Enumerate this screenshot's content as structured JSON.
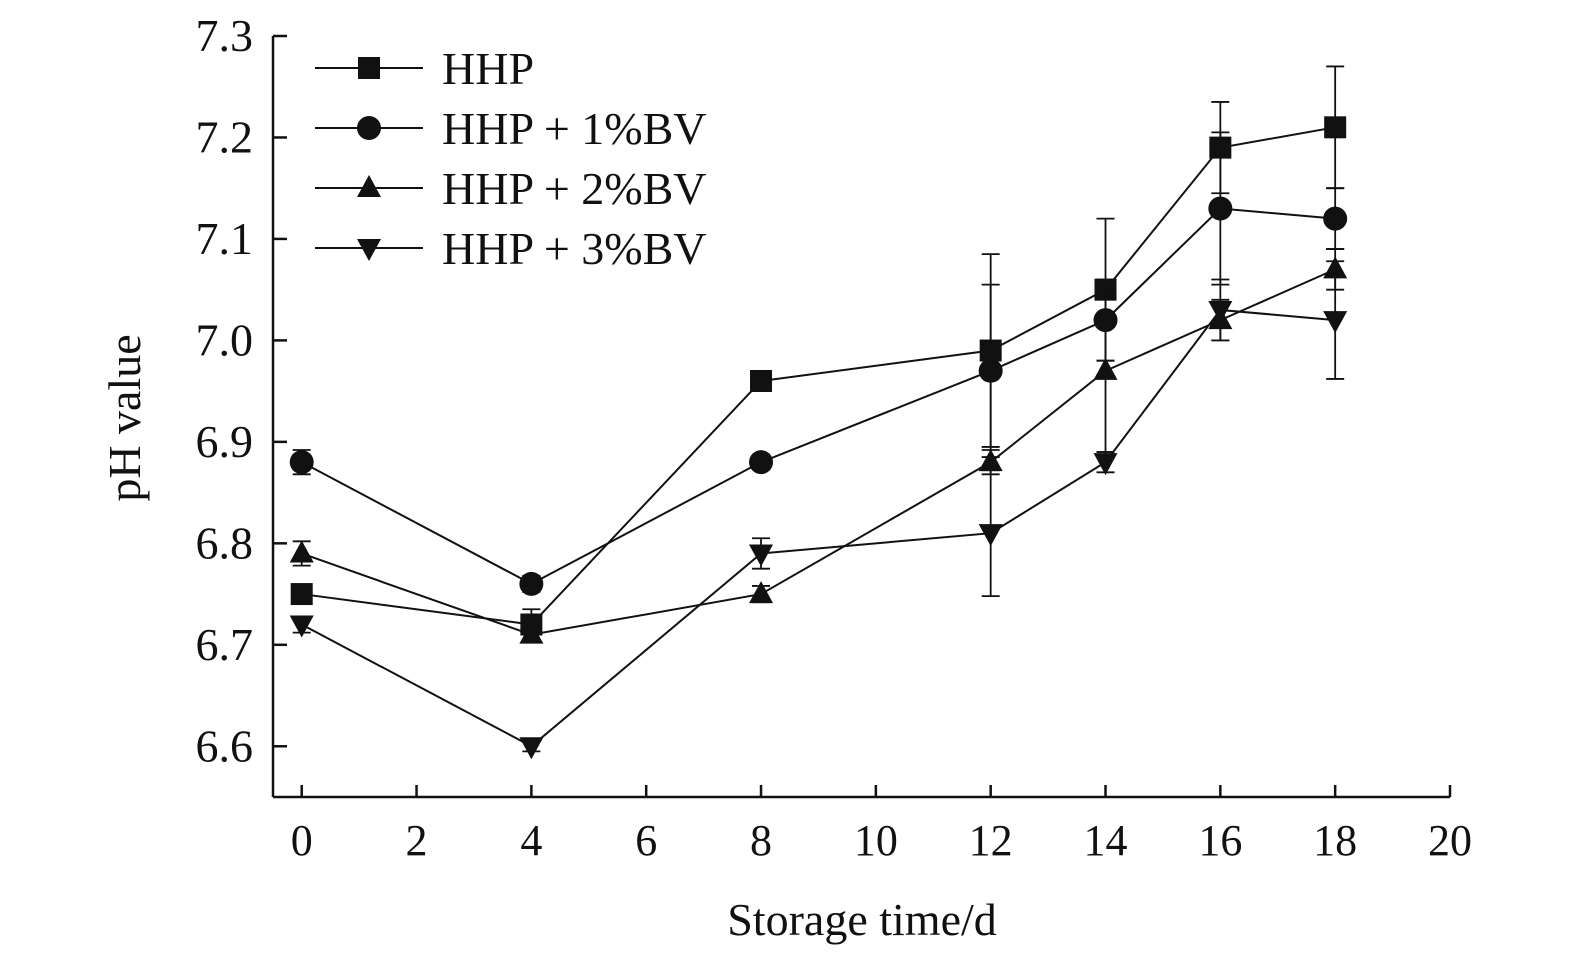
{
  "chart_data": {
    "type": "line",
    "title": "",
    "xlabel": "Storage time/d",
    "ylabel": "pH value",
    "xlim": [
      -0.5,
      20
    ],
    "ylim": [
      6.55,
      7.3
    ],
    "xticks": [
      0,
      2,
      4,
      6,
      8,
      10,
      12,
      14,
      16,
      18,
      20
    ],
    "xtick_labels": [
      "0",
      "2",
      "4",
      "6",
      "8",
      "10",
      "12",
      "14",
      "16",
      "18",
      "20"
    ],
    "yticks": [
      6.6,
      6.7,
      6.8,
      6.9,
      7.0,
      7.1,
      7.2,
      7.3
    ],
    "ytick_labels": [
      "6.6",
      "6.7",
      "6.8",
      "6.9",
      "7.0",
      "7.1",
      "7.2",
      "7.3"
    ],
    "grid": false,
    "legend_position": "top-left",
    "x": [
      0,
      4,
      8,
      12,
      14,
      16,
      18
    ],
    "series": [
      {
        "name": "HHP",
        "marker": "square",
        "values": [
          6.75,
          6.72,
          6.96,
          6.99,
          7.05,
          7.19,
          7.21
        ],
        "errors": [
          0.0,
          0.015,
          0.0,
          0.095,
          0.07,
          0.045,
          0.06
        ]
      },
      {
        "name": "HHP + 1%BV",
        "marker": "circle",
        "values": [
          6.88,
          6.76,
          6.88,
          6.97,
          7.02,
          7.13,
          7.12
        ],
        "errors": [
          0.012,
          0.008,
          0.0,
          0.085,
          0.04,
          0.075,
          0.03
        ]
      },
      {
        "name": "HHP + 2%BV",
        "marker": "triangle-up",
        "values": [
          6.79,
          6.71,
          6.75,
          6.88,
          6.97,
          7.02,
          7.07
        ],
        "errors": [
          0.012,
          0.005,
          0.008,
          0.012,
          0.08,
          0.02,
          0.02
        ]
      },
      {
        "name": "HHP + 3%BV",
        "marker": "triangle-down",
        "values": [
          6.72,
          6.6,
          6.79,
          6.81,
          6.88,
          7.03,
          7.02
        ],
        "errors": [
          0.008,
          0.005,
          0.015,
          0.062,
          0.01,
          0.03,
          0.058
        ]
      }
    ],
    "colors": {
      "line": "#111111",
      "background": "#ffffff"
    }
  }
}
